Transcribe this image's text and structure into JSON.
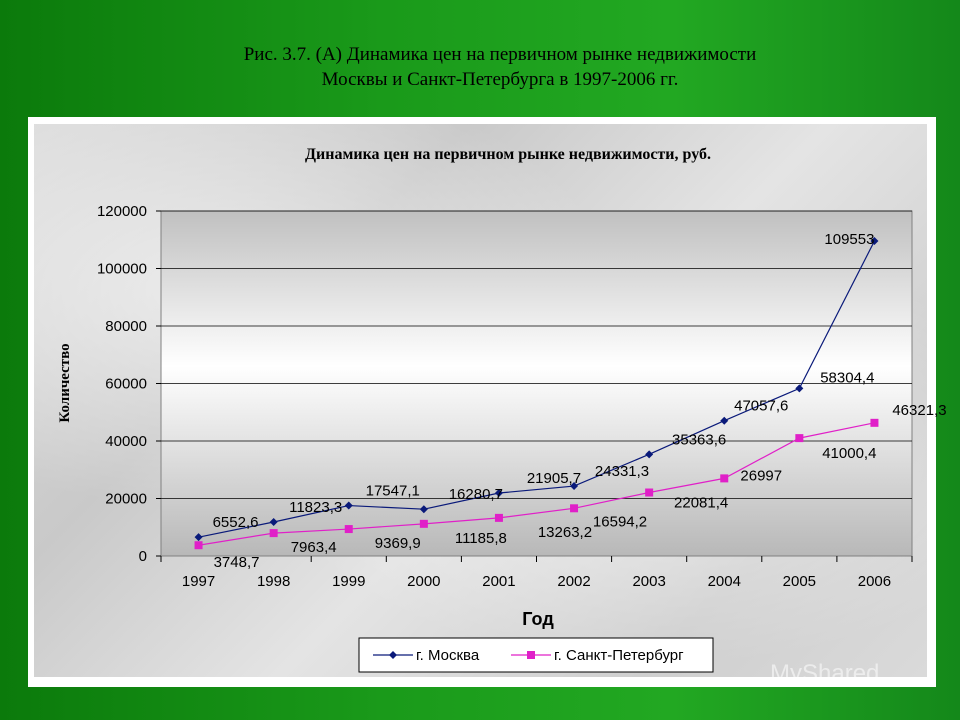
{
  "slide": {
    "title_line1": "Рис. 3.7. (А) Динамика цен на первичном рынке недвижимости",
    "title_line2": "Москвы и Санкт-Петербурга в 1997-2006 гг."
  },
  "watermark": "MyShared",
  "chart_data": {
    "type": "line",
    "title": "Динамика цен на первичном рынке недвижимости, руб.",
    "xlabel": "Год",
    "ylabel": "Количество",
    "categories": [
      "1997",
      "1998",
      "1999",
      "2000",
      "2001",
      "2002",
      "2003",
      "2004",
      "2005",
      "2006"
    ],
    "ylim": [
      0,
      120000
    ],
    "yticks": [
      "0",
      "20000",
      "40000",
      "60000",
      "80000",
      "100000",
      "120000"
    ],
    "grid": true,
    "legend_position": "bottom",
    "series": [
      {
        "name": "г. Москва",
        "color": "#0a1a7a",
        "marker": "diamond",
        "values": [
          6552.6,
          11823.3,
          17547.1,
          16280.7,
          21905.7,
          24331.3,
          35363.6,
          47057.6,
          58304.4,
          109553
        ],
        "labels": [
          "6552,6",
          "11823,3",
          "17547,1",
          "16280,7",
          "21905,7",
          "24331,3",
          "35363,6",
          "47057,6",
          "58304,4",
          "109553"
        ]
      },
      {
        "name": "г. Санкт-Петербург",
        "color": "#e020c8",
        "marker": "square",
        "values": [
          3748.7,
          7963.4,
          9369.9,
          11185.8,
          13263.2,
          16594.2,
          22081.4,
          26997,
          41000.4,
          46321.3
        ],
        "labels": [
          "3748,7",
          "7963,4",
          "9369,9",
          "11185,8",
          "13263,2",
          "16594,2",
          "22081,4",
          "26997",
          "41000,4",
          "46321,3"
        ]
      }
    ]
  }
}
